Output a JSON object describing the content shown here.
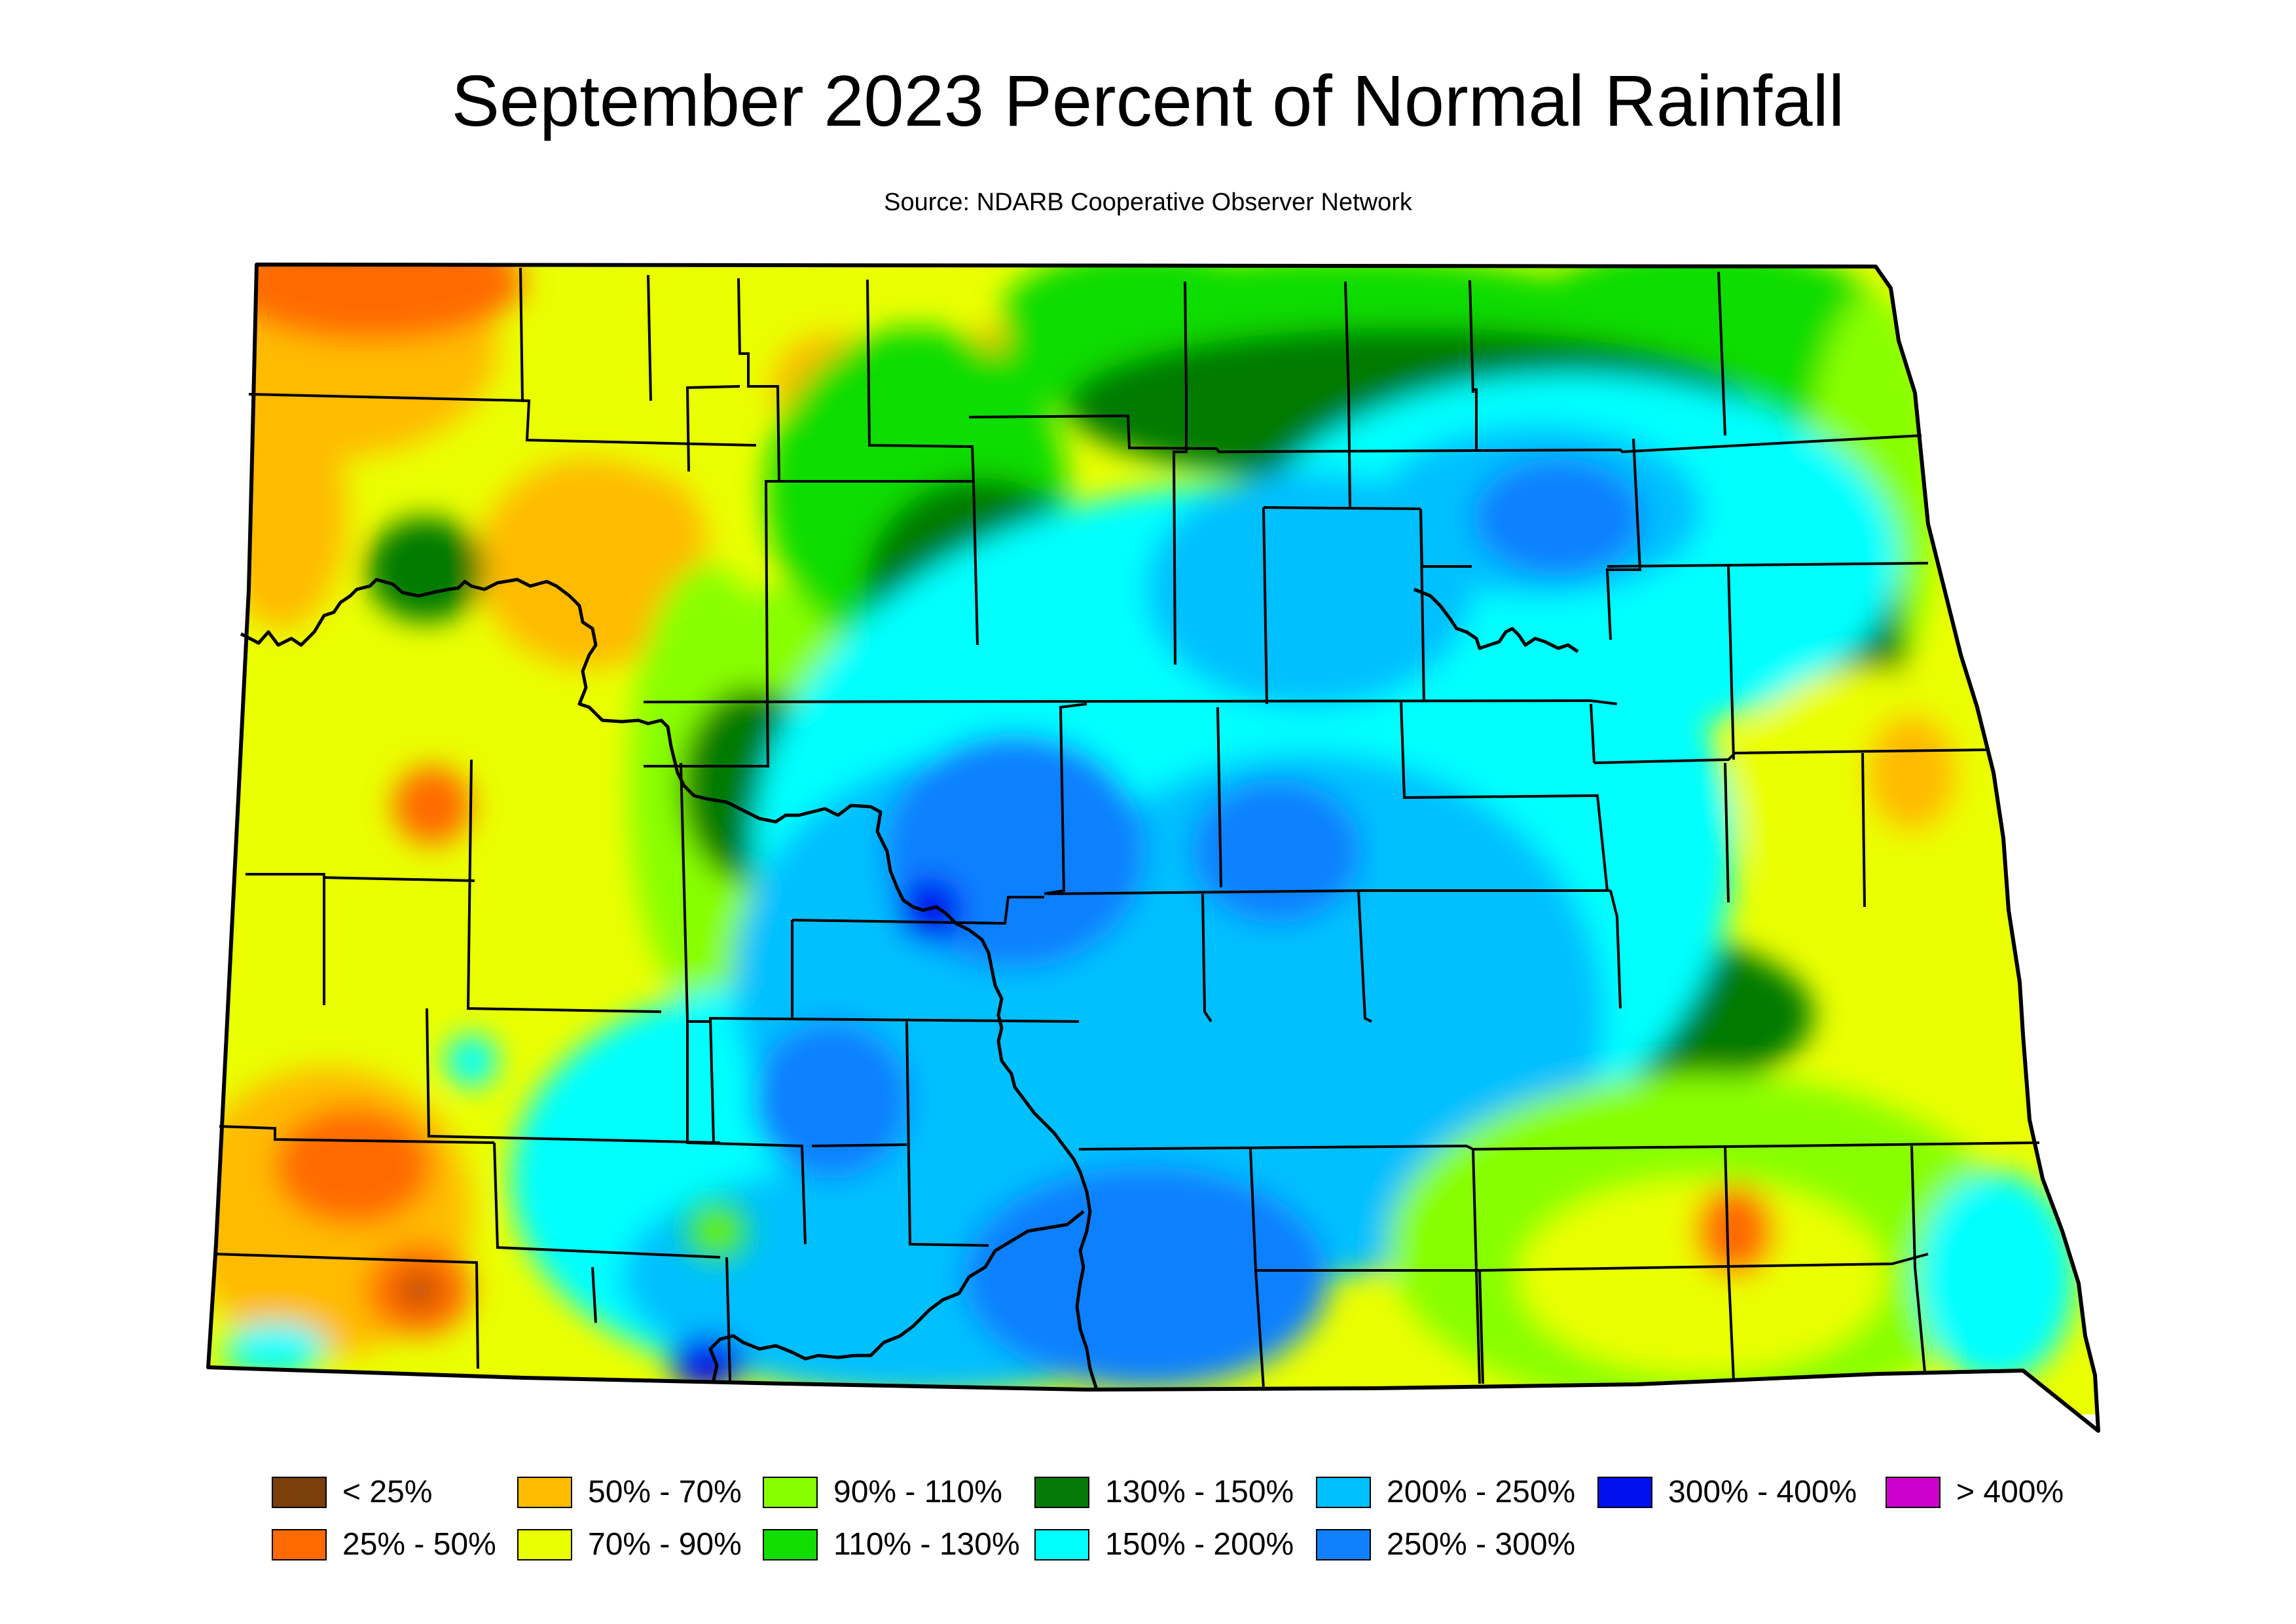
{
  "title": "September 2023 Percent of Normal Rainfall",
  "subtitle": "Source: NDARB Cooperative Observer Network",
  "legend": [
    {
      "label": "< 25%",
      "color": "#7a3f0a"
    },
    {
      "label": "25% - 50%",
      "color": "#ff6a00"
    },
    {
      "label": "50% - 70%",
      "color": "#ffbb00"
    },
    {
      "label": "70% - 90%",
      "color": "#eaff00"
    },
    {
      "label": "90% - 110%",
      "color": "#88ff00"
    },
    {
      "label": "110% - 130%",
      "color": "#11dd00"
    },
    {
      "label": "130% - 150%",
      "color": "#067a06"
    },
    {
      "label": "150% - 200%",
      "color": "#00ffff"
    },
    {
      "label": "200% - 250%",
      "color": "#00c0ff"
    },
    {
      "label": "250% - 300%",
      "color": "#1080ff"
    },
    {
      "label": "300% - 400%",
      "color": "#0010ee"
    },
    {
      "label": "> 400%",
      "color": "#cc00cc"
    }
  ]
}
